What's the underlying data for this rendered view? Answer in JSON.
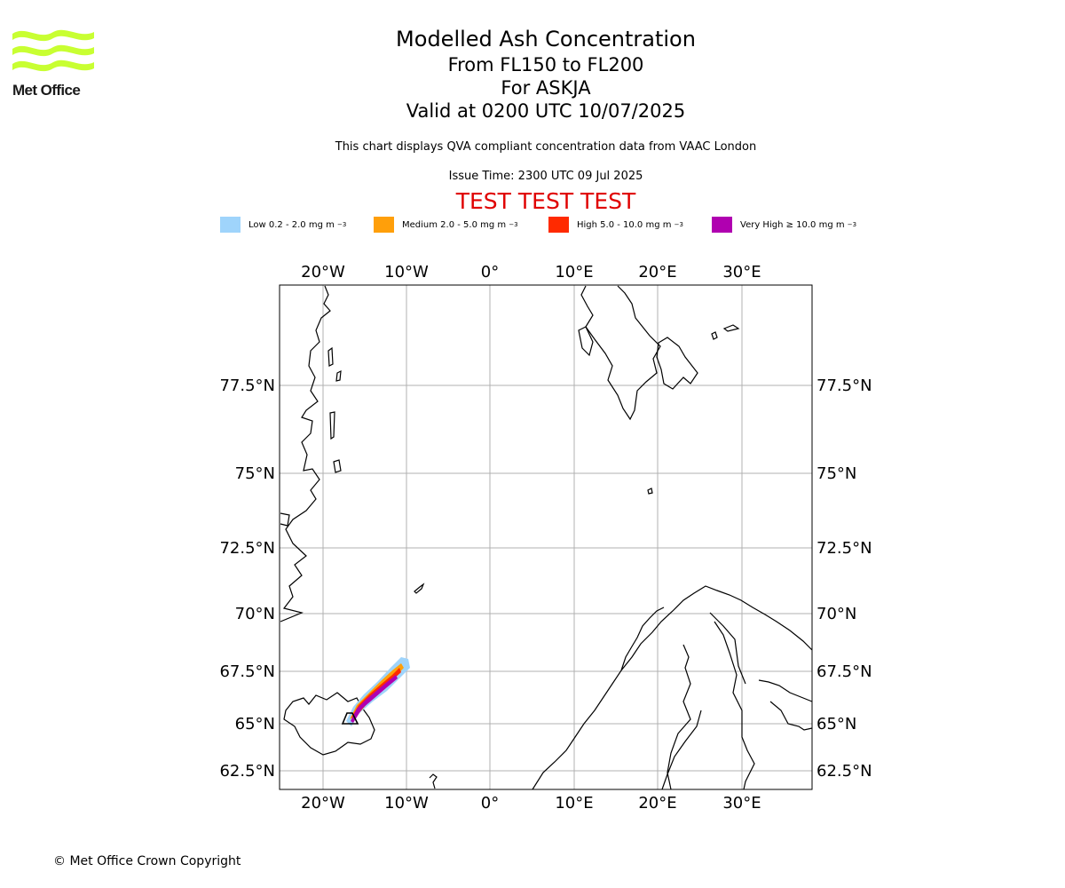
{
  "logo": {
    "text": "Met Office",
    "color": "#c8ff32"
  },
  "title": {
    "line1": "Modelled Ash Concentration",
    "line2": "From FL150 to FL200",
    "line3": "For ASKJA",
    "line4": "Valid at 0200 UTC 10/07/2025"
  },
  "description": "This chart displays QVA compliant concentration data from VAAC London",
  "issue_time": "Issue Time: 2300 UTC 09 Jul 2025",
  "test_banner": "TEST TEST TEST",
  "test_color": "#e00000",
  "legend": [
    {
      "label": "Low 0.2 - 2.0 mg m",
      "color": "#9fd4fb"
    },
    {
      "label": "Medium 2.0 - 5.0 mg m",
      "color": "#ff9f0a"
    },
    {
      "label": "High 5.0 - 10.0 mg m",
      "color": "#ff2a00"
    },
    {
      "label": "Very High ≥ 10.0 mg m",
      "color": "#b000b0"
    }
  ],
  "legend_unit_exponent": "−3",
  "map": {
    "lon_labels": [
      "20°W",
      "10°W",
      "0°",
      "10°E",
      "20°E",
      "30°E"
    ],
    "lat_labels": [
      "77.5°N",
      "75°N",
      "72.5°N",
      "70°N",
      "67.5°N",
      "65°N",
      "62.5°N"
    ],
    "volcano": "ASKJA",
    "grid": true
  },
  "copyright": "© Met Office Crown Copyright"
}
